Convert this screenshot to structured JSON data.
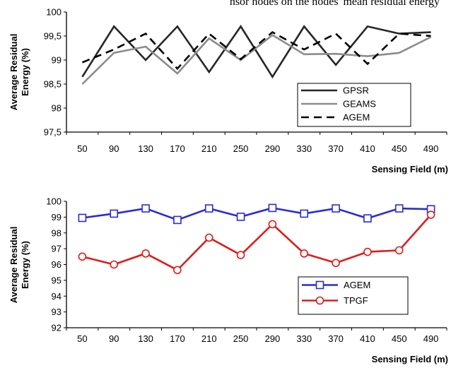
{
  "page": {
    "top_fragment": "nsor nodes on the nodes' mean residual energy"
  },
  "chart_data": [
    {
      "type": "line",
      "title": "",
      "xlabel": "Sensing Field (m)",
      "ylabel": "Average Residual Energy (%)",
      "ylabel_lines": [
        "Average Residual",
        "Energy (%)"
      ],
      "categories": [
        "50",
        "90",
        "130",
        "170",
        "210",
        "250",
        "290",
        "330",
        "370",
        "410",
        "450",
        "490"
      ],
      "ylim": [
        97.5,
        100
      ],
      "yticks": [
        97.5,
        98,
        98.5,
        99,
        99.5,
        100
      ],
      "ytick_labels": [
        "97,5",
        "98",
        "98,5",
        "99",
        "99,5",
        "100"
      ],
      "legend_position": "bottom-right",
      "grid": false,
      "series": [
        {
          "name": "GPSR",
          "color": "#262626",
          "dash": "solid",
          "marker": "none",
          "values": [
            98.65,
            99.7,
            99.0,
            99.7,
            98.75,
            99.7,
            98.65,
            99.7,
            98.9,
            99.7,
            99.55,
            99.58
          ]
        },
        {
          "name": "GEAMS",
          "color": "#8c8c8c",
          "dash": "solid",
          "marker": "none",
          "values": [
            98.5,
            99.15,
            99.28,
            98.72,
            99.45,
            99.0,
            99.52,
            99.12,
            99.13,
            99.08,
            99.15,
            99.48
          ]
        },
        {
          "name": "AGEM",
          "color": "#000000",
          "dash": "dashed",
          "marker": "none",
          "values": [
            98.95,
            99.22,
            99.55,
            98.82,
            99.55,
            99.02,
            99.58,
            99.22,
            99.55,
            98.92,
            99.55,
            99.5
          ]
        }
      ]
    },
    {
      "type": "line",
      "title": "",
      "xlabel": "Sensing Field (m)",
      "ylabel": "Average Residual Energy (%)",
      "ylabel_lines": [
        "Average Residual",
        "Energy (%)"
      ],
      "categories": [
        "50",
        "90",
        "130",
        "170",
        "210",
        "250",
        "290",
        "330",
        "370",
        "410",
        "450",
        "490"
      ],
      "ylim": [
        92,
        100
      ],
      "yticks": [
        92,
        93,
        94,
        95,
        96,
        97,
        98,
        99,
        100
      ],
      "ytick_labels": [
        "92",
        "93",
        "94",
        "95",
        "96",
        "97",
        "98",
        "99",
        "100"
      ],
      "legend_position": "bottom-right",
      "grid": false,
      "series": [
        {
          "name": "AGEM",
          "color": "#2b2bd4",
          "dash": "solid",
          "marker": "square",
          "values": [
            98.95,
            99.22,
            99.55,
            98.82,
            99.55,
            99.02,
            99.58,
            99.22,
            99.55,
            98.92,
            99.55,
            99.5
          ]
        },
        {
          "name": "TPGF",
          "color": "#e01b1b",
          "dash": "solid",
          "marker": "circle",
          "values": [
            96.5,
            96.0,
            96.7,
            95.65,
            97.7,
            96.6,
            98.55,
            96.7,
            96.1,
            96.8,
            96.9,
            99.15
          ]
        }
      ]
    }
  ]
}
